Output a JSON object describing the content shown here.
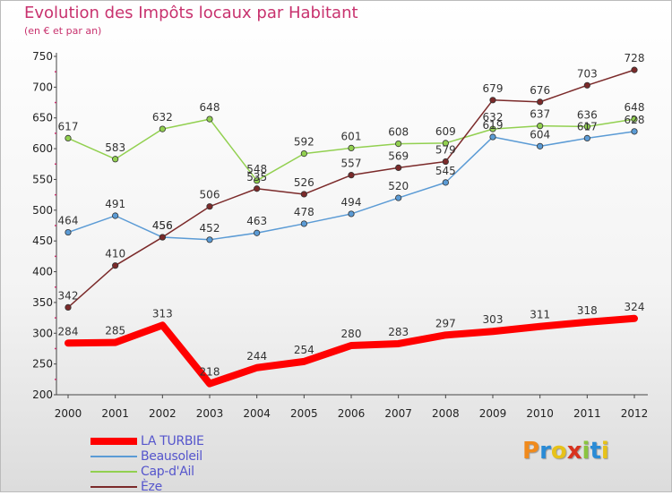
{
  "header": {
    "title": "Evolution des Impôts locaux par Habitant",
    "subtitle": "(en € et par an)"
  },
  "logo": {
    "letters": [
      "P",
      "r",
      "o",
      "x",
      "i",
      "t",
      "i"
    ],
    "colors": [
      "#f08a1c",
      "#2a8bd6",
      "#e7c21a",
      "#d8331f",
      "#8ac43f",
      "#2a8bd6",
      "#e7c21a"
    ]
  },
  "chart_data": {
    "type": "line",
    "title": "Evolution des Impôts locaux par Habitant",
    "subtitle": "(en € et par an)",
    "x": [
      "2000",
      "2001",
      "2002",
      "2003",
      "2004",
      "2005",
      "2006",
      "2007",
      "2008",
      "2009",
      "2010",
      "2011",
      "2012"
    ],
    "ylim": [
      200,
      750
    ],
    "yticks": [
      200,
      250,
      300,
      350,
      400,
      450,
      500,
      550,
      600,
      650,
      700,
      750
    ],
    "grid": false,
    "legend": "bottom-left",
    "series": [
      {
        "name": "LA TURBIE",
        "color": "#ff0000",
        "values": [
          284,
          285,
          313,
          218,
          244,
          254,
          280,
          283,
          297,
          303,
          311,
          318,
          324
        ]
      },
      {
        "name": "Beausoleil",
        "color": "#5b9bd5",
        "values": [
          464,
          491,
          456,
          452,
          463,
          478,
          494,
          520,
          545,
          619,
          604,
          617,
          628
        ]
      },
      {
        "name": "Cap-d'Ail",
        "color": "#92d050",
        "values": [
          617,
          583,
          632,
          648,
          548,
          592,
          601,
          608,
          609,
          632,
          637,
          636,
          648
        ]
      },
      {
        "name": "Èze",
        "color": "#7b2a2a",
        "values": [
          342,
          410,
          456,
          506,
          535,
          526,
          557,
          569,
          579,
          679,
          676,
          703,
          728
        ]
      }
    ]
  }
}
